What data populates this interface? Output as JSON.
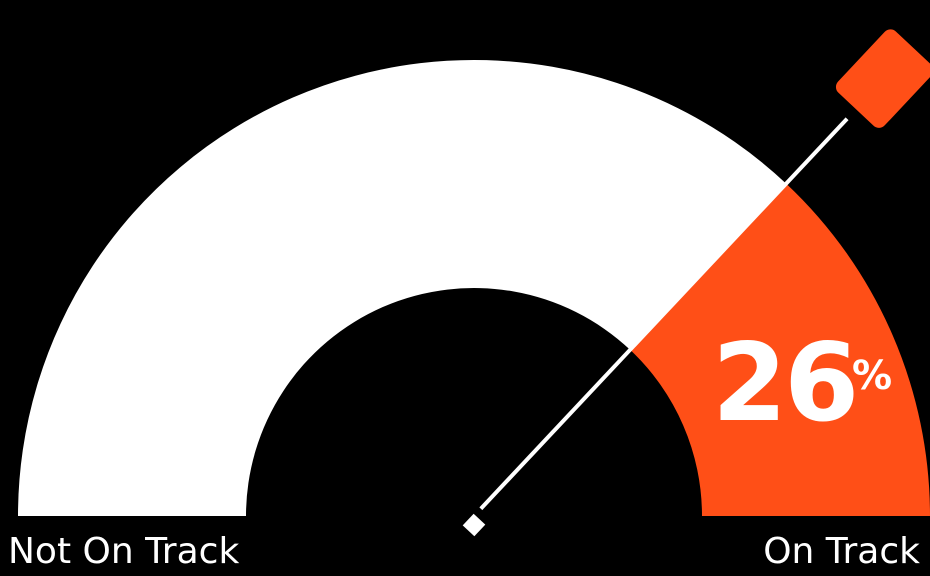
{
  "chart_data": {
    "type": "gauge",
    "value": 26,
    "value_label": "26",
    "unit": "%",
    "min_label": "Not On Track",
    "max_label": "On Track",
    "segments": [
      {
        "name": "Not On Track",
        "fraction": 0.74,
        "color": "#ffffff"
      },
      {
        "name": "On Track",
        "fraction": 0.26,
        "color": "#ff4f17"
      }
    ]
  },
  "colors": {
    "background": "#000000",
    "accent": "#ff4f17",
    "track": "#ffffff",
    "needle": "#ffffff"
  }
}
